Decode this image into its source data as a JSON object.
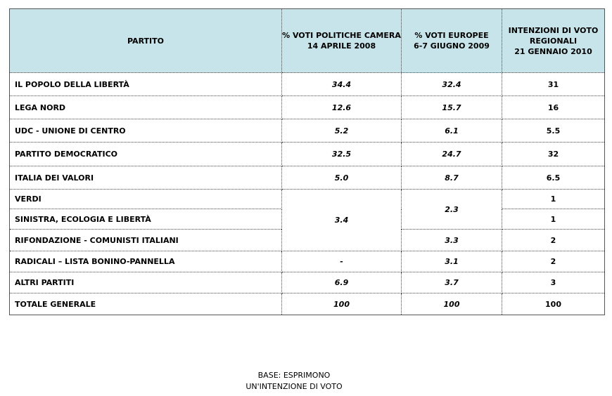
{
  "table": {
    "header": [
      {
        "title": "PARTITO"
      },
      {
        "title": "% VOTI POLITICHE CAMERA",
        "date": "14 APRILE 2008"
      },
      {
        "title": "% VOTI EUROPEE",
        "date": "6-7 GIUGNO 2009"
      },
      {
        "title": "INTENZIONI DI VOTO REGIONALI",
        "date": "21 GENNAIO 2010"
      }
    ],
    "rows": [
      [
        "IL POPOLO DELLA LIBERTÀ",
        "34.4",
        "32.4",
        "31"
      ],
      [
        "LEGA NORD",
        "12.6",
        "15.7",
        "16"
      ],
      [
        "UDC - UNIONE DI CENTRO",
        "5.2",
        "6.1",
        "5.5"
      ],
      [
        "PARTITO DEMOCRATICO",
        "32.5",
        "24.7",
        "32"
      ],
      [
        "ITALIA DEI VALORI",
        "5.0",
        "8.7",
        "6.5"
      ],
      [
        "VERDI",
        "3.4",
        "2.3",
        "1"
      ],
      [
        "SINISTRA, ECOLOGIA E LIBERTÀ",
        null,
        null,
        "1"
      ],
      [
        "RIFONDAZIONE - COMUNISTI ITALIANI",
        null,
        "3.3",
        "2"
      ],
      [
        "RADICALI – LISTA BONINO-PANNELLA",
        "-",
        "3.1",
        "2"
      ],
      [
        "ALTRI PARTITI",
        "6.9",
        "3.7",
        "3"
      ],
      [
        "TOTALE GENERALE",
        "100",
        "100",
        "100"
      ]
    ]
  },
  "footer": [
    "BASE: ESPRIMONO",
    "UN'INTENZIONE DI VOTO"
  ]
}
